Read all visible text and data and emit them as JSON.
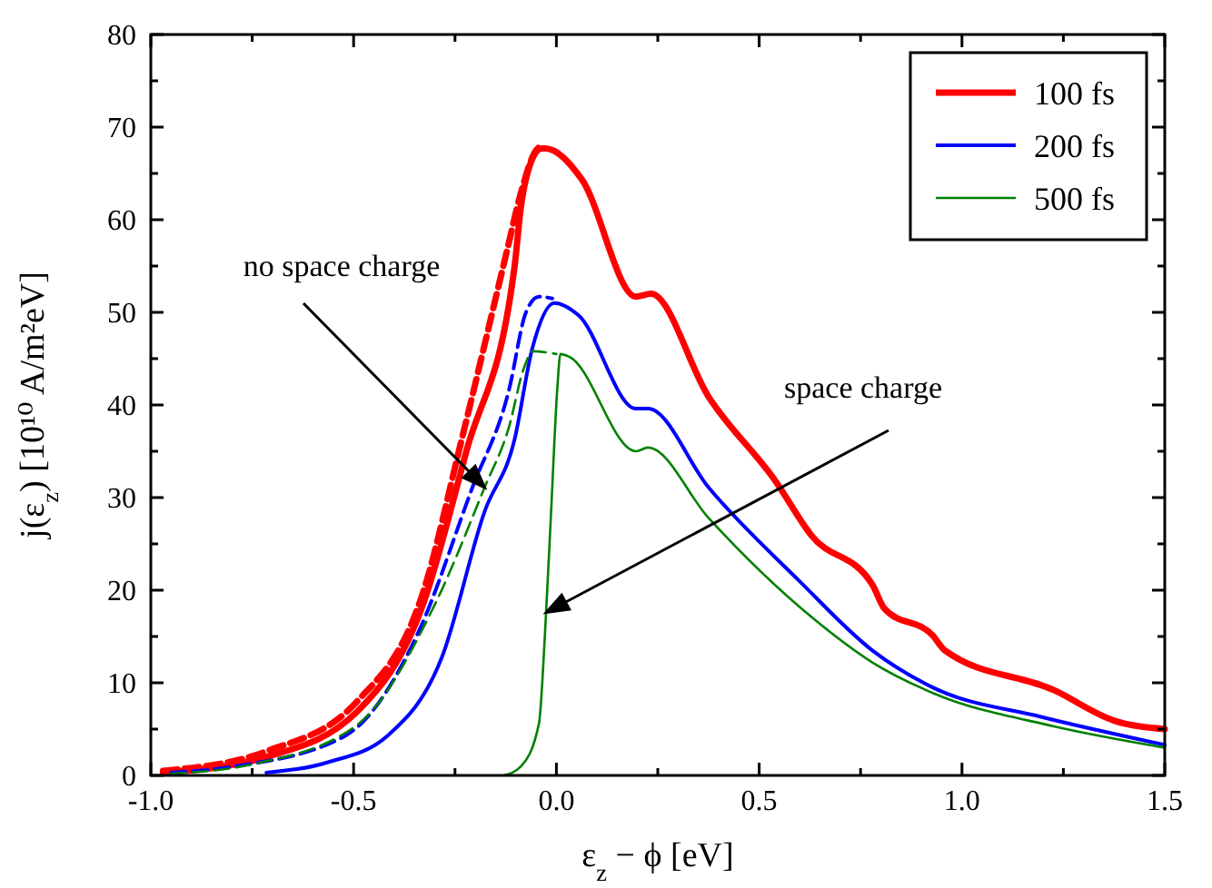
{
  "chart_data": {
    "type": "line",
    "xlabel": "ε$_{z}$ − ϕ [eV]",
    "ylabel": "j(ε$_{z}$) [10¹⁰ A/m²eV]",
    "xlim": [
      -1.0,
      1.5
    ],
    "ylim": [
      0,
      80
    ],
    "xticks": [
      {
        "value": -1.0,
        "label": "-1.0"
      },
      {
        "value": -0.75,
        "label": null
      },
      {
        "value": -0.5,
        "label": "-0.5"
      },
      {
        "value": -0.25,
        "label": null
      },
      {
        "value": 0,
        "label": "0.0"
      },
      {
        "value": 0.25,
        "label": null
      },
      {
        "value": 0.5,
        "label": "0.5"
      },
      {
        "value": 0.75,
        "label": null
      },
      {
        "value": 1.0,
        "label": "1.0"
      },
      {
        "value": 1.25,
        "label": null
      },
      {
        "value": 1.5,
        "label": "1.5"
      }
    ],
    "yticks": [
      0,
      {
        "value": 5,
        "label": null
      },
      10,
      {
        "value": 15,
        "label": null
      },
      20,
      {
        "value": 25,
        "label": null
      },
      30,
      {
        "value": 35,
        "label": null
      },
      40,
      {
        "value": 45,
        "label": null
      },
      50,
      {
        "value": 55,
        "label": null
      },
      60,
      {
        "value": 65,
        "label": null
      },
      70,
      {
        "value": 75,
        "label": null
      },
      80
    ],
    "grid": false,
    "legend": "top right",
    "marker": "none",
    "annotations": [
      {
        "text": "no space charge",
        "x": -0.177,
        "y": 31.1
      },
      {
        "text": "space charge",
        "x": -0.025,
        "y": 17.6
      }
    ],
    "series": [
      {
        "name": "100 fs",
        "color": "#ff0000",
        "line_style": "solid",
        "x": [
          -0.97,
          -0.715,
          -0.491,
          -0.327,
          -0.222,
          -0.103,
          -0.088,
          -0.06,
          -0.037,
          -0.028,
          0.062,
          0.196,
          0.233,
          0.375,
          0.54,
          0.629,
          0.779,
          0.809,
          0.928,
          0.958,
          1.227,
          1.376,
          1.5
        ],
        "values": [
          0.3,
          2.0,
          6.9,
          18.7,
          35.0,
          55.0,
          61.2,
          66.5,
          67.7,
          67.7,
          64.4,
          51.7,
          52.0,
          40.9,
          31.8,
          25.9,
          20.6,
          18.0,
          15.1,
          13.5,
          9.2,
          5.9,
          5.0
        ]
      },
      {
        "name": "200 fs",
        "color": "#0000ff",
        "line_style": "solid",
        "x": [
          -0.715,
          -0.565,
          -0.416,
          -0.282,
          -0.177,
          -0.103,
          -0.06,
          -0.005,
          0.054,
          0.196,
          0.226,
          0.375,
          0.599,
          0.779,
          0.928,
          1.197,
          1.5
        ],
        "values": [
          0.3,
          1.4,
          4.3,
          12.8,
          28.5,
          36.3,
          46.0,
          51.0,
          49.7,
          39.6,
          39.6,
          31.1,
          21.0,
          13.5,
          9.5,
          6.3,
          3.3
        ]
      },
      {
        "name": "500 fs",
        "color": "#008000",
        "line_style": "solid",
        "x": [
          -0.13,
          -0.087,
          -0.043,
          -0.028,
          -0.013,
          0.002,
          0.01,
          0.032,
          0.196,
          0.226,
          0.375,
          0.629,
          0.779,
          0.928,
          1.227,
          1.5
        ],
        "values": [
          0.0,
          1.0,
          5.6,
          15.4,
          28.5,
          41.6,
          45.5,
          45.2,
          35.0,
          35.4,
          27.8,
          17.1,
          12.2,
          8.9,
          5.3,
          3.0
        ]
      },
      {
        "color": "#ff0000",
        "line_style": "dashed",
        "x": [
          -0.97,
          -0.715,
          -0.491,
          -0.327,
          -0.235,
          -0.12,
          -0.09,
          -0.05,
          -0.037
        ],
        "values": [
          0.5,
          2.6,
          8.0,
          20.0,
          36.0,
          57.0,
          62.5,
          67.5,
          68.0
        ]
      },
      {
        "color": "#0000ff",
        "line_style": "dashed",
        "x": [
          -0.95,
          -0.79,
          -0.52,
          -0.341,
          -0.207,
          -0.117,
          -0.075,
          -0.043,
          -0.01
        ],
        "values": [
          0.3,
          1.0,
          4.3,
          15.4,
          31.1,
          41.6,
          50.0,
          51.7,
          51.5
        ]
      },
      {
        "color": "#008000",
        "line_style": "dashed",
        "x": [
          -0.95,
          -0.75,
          -0.49,
          -0.297,
          -0.177,
          -0.117,
          -0.08,
          -0.058,
          0.0
        ],
        "values": [
          0.2,
          1.2,
          5.5,
          18.7,
          31.1,
          37.6,
          44.0,
          45.8,
          45.5
        ]
      }
    ]
  }
}
